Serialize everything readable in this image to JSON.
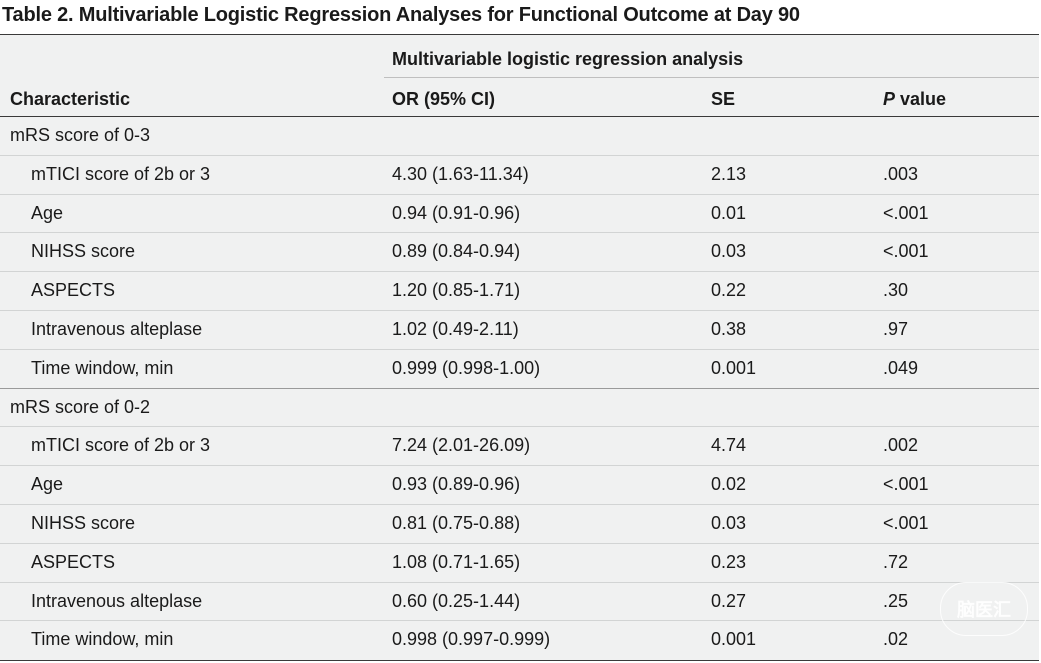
{
  "title": "Table 2. Multivariable Logistic Regression Analyses for Functional Outcome at Day 90",
  "header": {
    "spanner": "Multivariable logistic regression analysis",
    "characteristic": "Characteristic",
    "or": "OR (95% CI)",
    "se": "SE",
    "p_italic": "P",
    "p_rest": " value"
  },
  "groups": [
    {
      "label": "mRS score of 0-3",
      "rows": [
        {
          "name": "mTICI score of 2b or 3",
          "or": "4.30 (1.63-11.34)",
          "se": "2.13",
          "p": ".003"
        },
        {
          "name": "Age",
          "or": "0.94 (0.91-0.96)",
          "se": "0.01",
          "p": "<.001"
        },
        {
          "name": "NIHSS score",
          "or": "0.89 (0.84-0.94)",
          "se": "0.03",
          "p": "<.001"
        },
        {
          "name": "ASPECTS",
          "or": "1.20 (0.85-1.71)",
          "se": "0.22",
          "p": ".30"
        },
        {
          "name": "Intravenous alteplase",
          "or": "1.02 (0.49-2.11)",
          "se": "0.38",
          "p": ".97"
        },
        {
          "name": "Time window, min",
          "or": "0.999 (0.998-1.00)",
          "se": "0.001",
          "p": ".049"
        }
      ]
    },
    {
      "label": "mRS score of 0-2",
      "rows": [
        {
          "name": "mTICI score of 2b or 3",
          "or": "7.24 (2.01-26.09)",
          "se": "4.74",
          "p": ".002"
        },
        {
          "name": "Age",
          "or": "0.93 (0.89-0.96)",
          "se": "0.02",
          "p": "<.001"
        },
        {
          "name": "NIHSS score",
          "or": "0.81 (0.75-0.88)",
          "se": "0.03",
          "p": "<.001"
        },
        {
          "name": "ASPECTS",
          "or": "1.08 (0.71-1.65)",
          "se": "0.23",
          "p": ".72"
        },
        {
          "name": "Intravenous alteplase",
          "or": "0.60 (0.25-1.44)",
          "se": "0.27",
          "p": ".25"
        },
        {
          "name": "Time window, min",
          "or": "0.998 (0.997-0.999)",
          "se": "0.001",
          "p": ".02"
        }
      ]
    }
  ],
  "watermark": "脑医汇"
}
